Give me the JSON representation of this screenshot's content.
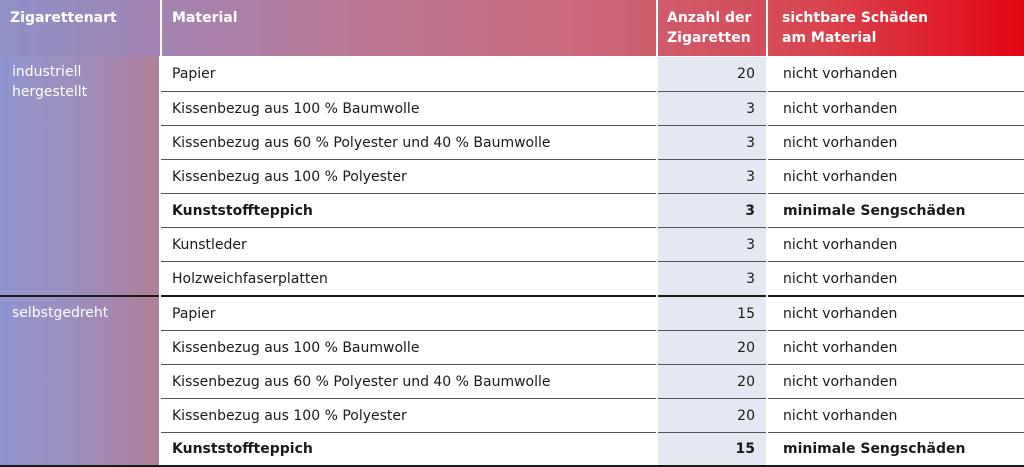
{
  "table": {
    "headers": {
      "col1": "Zigarettenart",
      "col2": "Material",
      "col3_line1": "Anzahl der",
      "col3_line2": "Zigaretten",
      "col4_line1": "sichtbare Schäden",
      "col4_line2": "am Material"
    },
    "groups": [
      {
        "label_line1": "industriell",
        "label_line2": "hergestellt",
        "rows": [
          {
            "material": "Papier",
            "count": "20",
            "damage": "nicht vorhanden",
            "bold": false
          },
          {
            "material": "Kissenbezug aus 100 % Baumwolle",
            "count": "3",
            "damage": "nicht vorhanden",
            "bold": false
          },
          {
            "material": "Kissenbezug aus 60 % Polyester und 40 % Baumwolle",
            "count": "3",
            "damage": "nicht vorhanden",
            "bold": false
          },
          {
            "material": "Kissenbezug aus 100 % Polyester",
            "count": "3",
            "damage": "nicht vorhanden",
            "bold": false
          },
          {
            "material": "Kunststoffteppich",
            "count": "3",
            "damage": "minimale Sengschäden",
            "bold": true
          },
          {
            "material": "Kunstleder",
            "count": "3",
            "damage": "nicht vorhanden",
            "bold": false
          },
          {
            "material": "Holzweichfaserplatten",
            "count": "3",
            "damage": "nicht vorhanden",
            "bold": false
          }
        ]
      },
      {
        "label_line1": "selbstgedreht",
        "label_line2": "",
        "rows": [
          {
            "material": "Papier",
            "count": "15",
            "damage": "nicht vorhanden",
            "bold": false
          },
          {
            "material": "Kissenbezug aus 100 % Baumwolle",
            "count": "20",
            "damage": "nicht vorhanden",
            "bold": false
          },
          {
            "material": "Kissenbezug aus 60 % Polyester und 40 % Baumwolle",
            "count": "20",
            "damage": "nicht vorhanden",
            "bold": false
          },
          {
            "material": "Kissenbezug aus 100 % Polyester",
            "count": "20",
            "damage": "nicht vorhanden",
            "bold": false
          },
          {
            "material": "Kunststoffteppich",
            "count": "15",
            "damage": "minimale Sengschäden",
            "bold": true
          }
        ]
      }
    ]
  }
}
